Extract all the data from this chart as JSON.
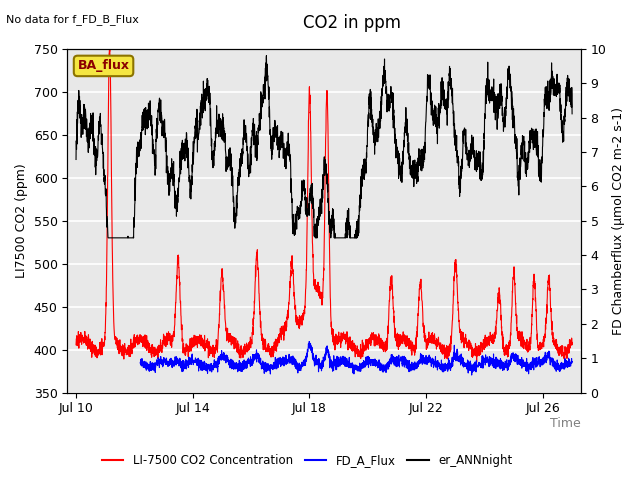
{
  "title": "CO2 in ppm",
  "top_left_text": "No data for f_FD_B_Flux",
  "xlabel": "Time",
  "ylabel_left": "LI7500 CO2 (ppm)",
  "ylabel_right": "FD Chamberflux (μmol CO2 m-2 s-1)",
  "ylim_left": [
    350,
    750
  ],
  "ylim_right": [
    0.0,
    10.0
  ],
  "yticks_left": [
    350,
    400,
    450,
    500,
    550,
    600,
    650,
    700,
    750
  ],
  "yticks_right": [
    0.0,
    1.0,
    2.0,
    3.0,
    4.0,
    5.0,
    6.0,
    7.0,
    8.0,
    9.0,
    10.0
  ],
  "xtick_labels": [
    "Jul 10",
    "Jul 14",
    "Jul 18",
    "Jul 22",
    "Jul 26"
  ],
  "xtick_positions": [
    0,
    4,
    8,
    12,
    16
  ],
  "xlim": [
    -0.3,
    17.3
  ],
  "annotation_box_text": "BA_flux",
  "annotation_box_color": "#f5e642",
  "annotation_box_edgecolor": "#8B7300",
  "annotation_text_color": "#8B0000",
  "legend_items": [
    {
      "label": "LI-7500 CO2 Concentration",
      "color": "red",
      "lw": 1.5
    },
    {
      "label": "FD_A_Flux",
      "color": "blue",
      "lw": 1.5
    },
    {
      "label": "er_ANNnight",
      "color": "black",
      "lw": 1.5
    }
  ],
  "bg_color": "#e8e8e8",
  "grid_color": "white",
  "title_fontsize": 12,
  "axis_label_fontsize": 9,
  "tick_fontsize": 9
}
